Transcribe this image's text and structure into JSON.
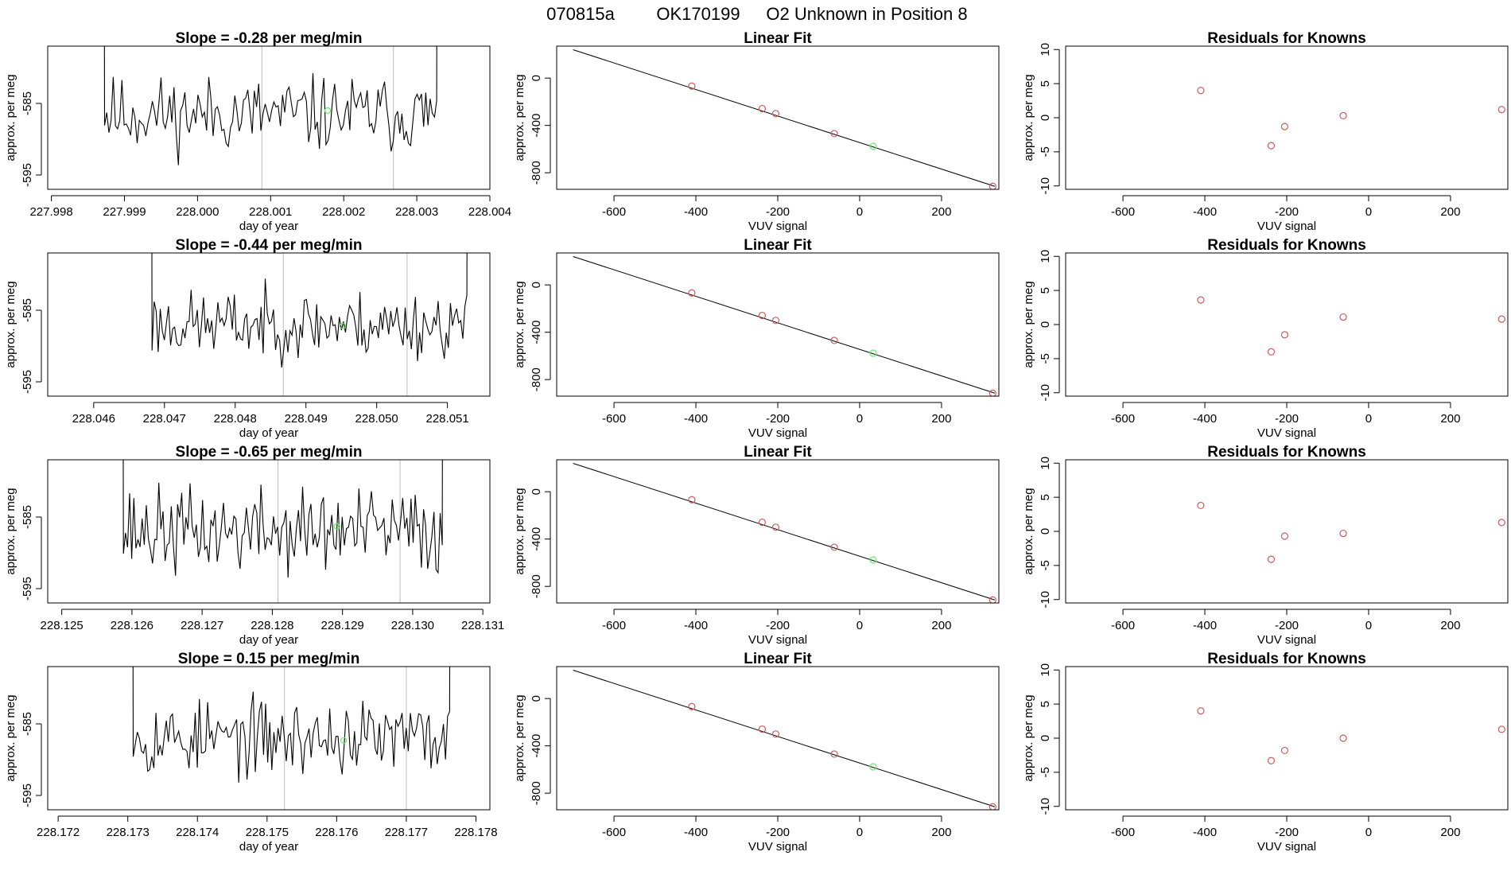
{
  "header": {
    "run_id": "070815a",
    "sample_id": "OK170199",
    "description": "O2 Unknown in Position  8"
  },
  "style": {
    "trace_color": "#000000",
    "vline_color": "#bdbdbd",
    "known_point_color": "#cd5c5c",
    "unknown_point_color": "#66ee66",
    "fit_line_color": "#000000",
    "axis_color": "#000000"
  },
  "chart_data": [
    {
      "panel": "timeseries",
      "row": 0,
      "type": "line",
      "title": "Slope =  -0.28  per meg/min",
      "xlabel": "day of year",
      "ylabel": "approx. per meg",
      "xlim": [
        227.99795,
        228.004
      ],
      "ylim": [
        -597,
        -577
      ],
      "xticks": [
        "227.998",
        "227.999",
        "228.000",
        "228.001",
        "228.002",
        "228.003",
        "228.004"
      ],
      "xtick_values": [
        227.998,
        227.999,
        228.0,
        228.001,
        228.002,
        228.003,
        228.004
      ],
      "yticks": [
        "-585",
        "-595"
      ],
      "ytick_values": [
        -585,
        -595
      ],
      "trace_start": 227.99855,
      "trace_end": 228.00345,
      "seed": 11,
      "rise_start": 578,
      "rise_end": 578,
      "level": -586.5,
      "noise": 2.6,
      "vlines": [
        228.00088,
        228.00268
      ],
      "unknown_point": {
        "x": 228.00178,
        "y": -586.0
      }
    },
    {
      "panel": "linear_fit",
      "row": 0,
      "type": "scatter",
      "title": "Linear Fit",
      "xlabel": "VUV signal",
      "ylabel": "approx. per meg",
      "xlim": [
        -740,
        340
      ],
      "ylim": [
        -940,
        270
      ],
      "xticks": [
        "-600",
        "-400",
        "-200",
        "0",
        "200"
      ],
      "xtick_values": [
        -600,
        -400,
        -200,
        0,
        200
      ],
      "yticks": [
        "0",
        "-400",
        "-800"
      ],
      "ytick_values": [
        0,
        -400,
        -800
      ],
      "fit_line": {
        "x1": -700,
        "y1": 240,
        "x2": 330,
        "y2": -915
      },
      "known_points": [
        {
          "x": -410,
          "y": -68
        },
        {
          "x": -238,
          "y": -258
        },
        {
          "x": -205,
          "y": -300
        },
        {
          "x": -62,
          "y": -469
        },
        {
          "x": 325,
          "y": -915
        }
      ],
      "unknown_point": {
        "x": 33,
        "y": -577
      }
    },
    {
      "panel": "residuals",
      "row": 0,
      "type": "scatter",
      "title": "Residuals for Knowns",
      "xlabel": "VUV signal",
      "ylabel": "approx. per meg",
      "xlim": [
        -740,
        340
      ],
      "ylim": [
        -10.5,
        10.5
      ],
      "xticks": [
        "-600",
        "-400",
        "-200",
        "0",
        "200"
      ],
      "xtick_values": [
        -600,
        -400,
        -200,
        0,
        200
      ],
      "yticks": [
        "10",
        "5",
        "0",
        "-5",
        "-10"
      ],
      "ytick_values": [
        10,
        5,
        0,
        -5,
        -10
      ],
      "points": [
        {
          "x": -410,
          "y": 4.0
        },
        {
          "x": -238,
          "y": -4.1
        },
        {
          "x": -205,
          "y": -1.3
        },
        {
          "x": -62,
          "y": 0.3
        },
        {
          "x": 325,
          "y": 1.2
        }
      ]
    },
    {
      "panel": "timeseries",
      "row": 1,
      "type": "line",
      "title": "Slope =  -0.44  per meg/min",
      "xlabel": "day of year",
      "ylabel": "approx. per meg",
      "xlim": [
        228.04535,
        228.0516
      ],
      "ylim": [
        -597,
        -577
      ],
      "xticks": [
        "228.046",
        "228.047",
        "228.048",
        "228.049",
        "228.050",
        "228.051"
      ],
      "xtick_values": [
        228.046,
        228.047,
        228.048,
        228.049,
        228.05,
        228.051
      ],
      "yticks": [
        "-585",
        "-595"
      ],
      "ytick_values": [
        -585,
        -595
      ],
      "trace_start": 228.04665,
      "trace_end": 228.05145,
      "seed": 23,
      "rise_start": 578,
      "rise_end": 579,
      "level": -587.0,
      "noise": 2.3,
      "vlines": [
        228.04868,
        228.05043
      ],
      "unknown_point": {
        "x": 228.04952,
        "y": -587.2
      }
    },
    {
      "panel": "linear_fit",
      "row": 1,
      "type": "scatter",
      "title": "Linear Fit",
      "xlabel": "VUV signal",
      "ylabel": "approx. per meg",
      "xlim": [
        -740,
        340
      ],
      "ylim": [
        -940,
        270
      ],
      "xticks": [
        "-600",
        "-400",
        "-200",
        "0",
        "200"
      ],
      "xtick_values": [
        -600,
        -400,
        -200,
        0,
        200
      ],
      "yticks": [
        "0",
        "-400",
        "-800"
      ],
      "ytick_values": [
        0,
        -400,
        -800
      ],
      "fit_line": {
        "x1": -700,
        "y1": 240,
        "x2": 330,
        "y2": -915
      },
      "known_points": [
        {
          "x": -410,
          "y": -68
        },
        {
          "x": -238,
          "y": -258
        },
        {
          "x": -205,
          "y": -300
        },
        {
          "x": -62,
          "y": -469
        },
        {
          "x": 325,
          "y": -915
        }
      ],
      "unknown_point": {
        "x": 33,
        "y": -577
      }
    },
    {
      "panel": "residuals",
      "row": 1,
      "type": "scatter",
      "title": "Residuals for Knowns",
      "xlabel": "VUV signal",
      "ylabel": "approx. per meg",
      "xlim": [
        -740,
        340
      ],
      "ylim": [
        -10.5,
        10.5
      ],
      "xticks": [
        "-600",
        "-400",
        "-200",
        "0",
        "200"
      ],
      "xtick_values": [
        -600,
        -400,
        -200,
        0,
        200
      ],
      "yticks": [
        "10",
        "5",
        "0",
        "-5",
        "-10"
      ],
      "ytick_values": [
        10,
        5,
        0,
        -5,
        -10
      ],
      "points": [
        {
          "x": -410,
          "y": 3.6
        },
        {
          "x": -238,
          "y": -4.0
        },
        {
          "x": -205,
          "y": -1.5
        },
        {
          "x": -62,
          "y": 1.1
        },
        {
          "x": 325,
          "y": 0.8
        }
      ]
    },
    {
      "panel": "timeseries",
      "row": 2,
      "type": "line",
      "title": "Slope =  -0.65  per meg/min",
      "xlabel": "day of year",
      "ylabel": "approx. per meg",
      "xlim": [
        228.1248,
        228.1311
      ],
      "ylim": [
        -597,
        -577
      ],
      "xticks": [
        "228.125",
        "228.126",
        "228.127",
        "228.128",
        "228.129",
        "228.130",
        "228.131"
      ],
      "xtick_values": [
        228.125,
        228.126,
        228.127,
        228.128,
        228.129,
        228.13,
        228.131
      ],
      "yticks": [
        "-585",
        "-595"
      ],
      "ytick_values": [
        -585,
        -595
      ],
      "trace_start": 228.1257,
      "trace_end": 228.1306,
      "seed": 37,
      "rise_start": 578,
      "rise_end": 578,
      "level": -587.0,
      "noise": 3.0,
      "vlines": [
        228.12808,
        228.12982
      ],
      "unknown_point": {
        "x": 228.12892,
        "y": -586.3
      }
    },
    {
      "panel": "linear_fit",
      "row": 2,
      "type": "scatter",
      "title": "Linear Fit",
      "xlabel": "VUV signal",
      "ylabel": "approx. per meg",
      "xlim": [
        -740,
        340
      ],
      "ylim": [
        -940,
        270
      ],
      "xticks": [
        "-600",
        "-400",
        "-200",
        "0",
        "200"
      ],
      "xtick_values": [
        -600,
        -400,
        -200,
        0,
        200
      ],
      "yticks": [
        "0",
        "-400",
        "-800"
      ],
      "ytick_values": [
        0,
        -400,
        -800
      ],
      "fit_line": {
        "x1": -700,
        "y1": 240,
        "x2": 330,
        "y2": -915
      },
      "known_points": [
        {
          "x": -410,
          "y": -68
        },
        {
          "x": -238,
          "y": -258
        },
        {
          "x": -205,
          "y": -300
        },
        {
          "x": -62,
          "y": -469
        },
        {
          "x": 325,
          "y": -915
        }
      ],
      "unknown_point": {
        "x": 33,
        "y": -577
      }
    },
    {
      "panel": "residuals",
      "row": 2,
      "type": "scatter",
      "title": "Residuals for Knowns",
      "xlabel": "VUV signal",
      "ylabel": "approx. per meg",
      "xlim": [
        -740,
        340
      ],
      "ylim": [
        -10.5,
        10.5
      ],
      "xticks": [
        "-600",
        "-400",
        "-200",
        "0",
        "200"
      ],
      "xtick_values": [
        -600,
        -400,
        -200,
        0,
        200
      ],
      "yticks": [
        "10",
        "5",
        "0",
        "-5",
        "-10"
      ],
      "ytick_values": [
        10,
        5,
        0,
        -5,
        -10
      ],
      "points": [
        {
          "x": -410,
          "y": 3.8
        },
        {
          "x": -238,
          "y": -4.1
        },
        {
          "x": -205,
          "y": -0.7
        },
        {
          "x": -62,
          "y": -0.3
        },
        {
          "x": 325,
          "y": 1.3
        }
      ]
    },
    {
      "panel": "timeseries",
      "row": 3,
      "type": "line",
      "title": "Slope =  0.15  per meg/min",
      "xlabel": "day of year",
      "ylabel": "approx. per meg",
      "xlim": [
        228.17185,
        228.1782
      ],
      "ylim": [
        -597,
        -577
      ],
      "xticks": [
        "228.172",
        "228.173",
        "228.174",
        "228.175",
        "228.176",
        "228.177",
        "228.178"
      ],
      "xtick_values": [
        228.172,
        228.173,
        228.174,
        228.175,
        228.176,
        228.177,
        228.178
      ],
      "yticks": [
        "-585",
        "-595"
      ],
      "ytick_values": [
        -585,
        -595
      ],
      "trace_start": 228.1729,
      "trace_end": 228.1778,
      "seed": 53,
      "rise_start": 578,
      "rise_end": 578,
      "level": -587.0,
      "noise": 2.6,
      "vlines": [
        228.17525,
        228.177
      ],
      "unknown_point": {
        "x": 228.1761,
        "y": -587.3
      }
    },
    {
      "panel": "linear_fit",
      "row": 3,
      "type": "scatter",
      "title": "Linear Fit",
      "xlabel": "VUV signal",
      "ylabel": "approx. per meg",
      "xlim": [
        -740,
        340
      ],
      "ylim": [
        -940,
        270
      ],
      "xticks": [
        "-600",
        "-400",
        "-200",
        "0",
        "200"
      ],
      "xtick_values": [
        -600,
        -400,
        -200,
        0,
        200
      ],
      "yticks": [
        "0",
        "-400",
        "-800"
      ],
      "ytick_values": [
        0,
        -400,
        -800
      ],
      "fit_line": {
        "x1": -700,
        "y1": 240,
        "x2": 330,
        "y2": -915
      },
      "known_points": [
        {
          "x": -410,
          "y": -68
        },
        {
          "x": -238,
          "y": -258
        },
        {
          "x": -205,
          "y": -300
        },
        {
          "x": -62,
          "y": -469
        },
        {
          "x": 325,
          "y": -915
        }
      ],
      "unknown_point": {
        "x": 33,
        "y": -577
      }
    },
    {
      "panel": "residuals",
      "row": 3,
      "type": "scatter",
      "title": "Residuals for Knowns",
      "xlabel": "VUV signal",
      "ylabel": "approx. per meg",
      "xlim": [
        -740,
        340
      ],
      "ylim": [
        -10.5,
        10.5
      ],
      "xticks": [
        "-600",
        "-400",
        "-200",
        "0",
        "200"
      ],
      "xtick_values": [
        -600,
        -400,
        -200,
        0,
        200
      ],
      "yticks": [
        "10",
        "5",
        "0",
        "-5",
        "-10"
      ],
      "ytick_values": [
        10,
        5,
        0,
        -5,
        -10
      ],
      "points": [
        {
          "x": -410,
          "y": 4.0
        },
        {
          "x": -238,
          "y": -3.3
        },
        {
          "x": -205,
          "y": -1.8
        },
        {
          "x": -62,
          "y": 0.0
        },
        {
          "x": 325,
          "y": 1.3
        }
      ]
    }
  ]
}
